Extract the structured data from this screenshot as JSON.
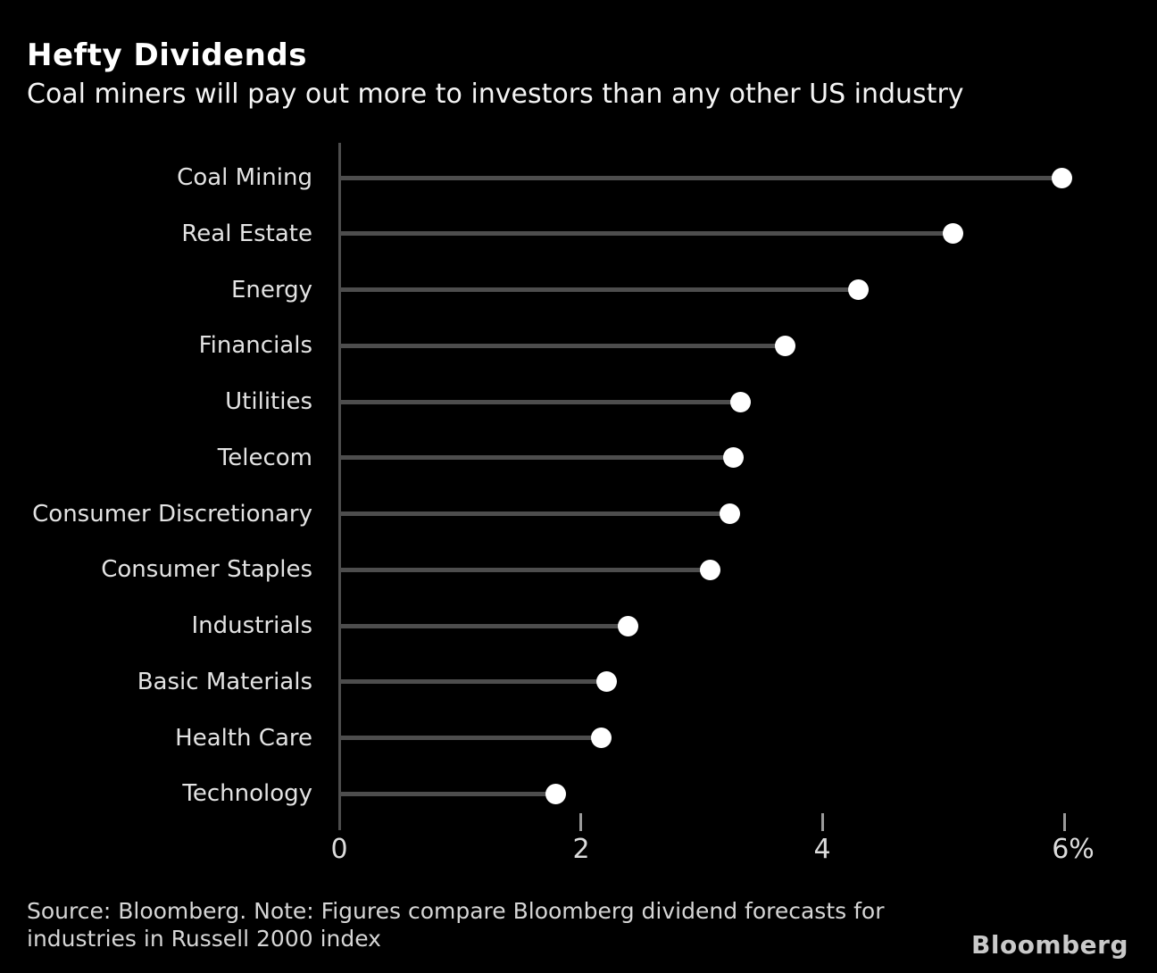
{
  "chart_data": {
    "type": "bar",
    "variant": "lollipop-horizontal",
    "title": "Hefty Dividends",
    "subtitle": "Coal miners will pay out more to investors than any other US industry",
    "categories": [
      "Coal Mining",
      "Real Estate",
      "Energy",
      "Financials",
      "Utilities",
      "Telecom",
      "Consumer Discretionary",
      "Consumer Staples",
      "Industrials",
      "Basic Materials",
      "Health Care",
      "Technology"
    ],
    "values": [
      5.98,
      5.08,
      4.3,
      3.69,
      3.32,
      3.26,
      3.23,
      3.07,
      2.39,
      2.21,
      2.17,
      1.79
    ],
    "unit": "%",
    "xlabel": "",
    "ylabel": "",
    "xlim": [
      0,
      6
    ],
    "xticks": [
      {
        "value": 0,
        "label": "0"
      },
      {
        "value": 2,
        "label": "2"
      },
      {
        "value": 4,
        "label": "4"
      },
      {
        "value": 6,
        "label": "6%"
      }
    ],
    "grid": false,
    "legend": false,
    "source_lines": [
      "Source: Bloomberg. Note: Figures compare Bloomberg dividend forecasts for",
      "industries in Russell 2000 index"
    ],
    "colors": {
      "background": "#000000",
      "dot": "#ffffff",
      "stem": "#4d4d4d",
      "axis_line": "#4d4d4d",
      "tick_mark": "#9a9a9a",
      "category_label": "#e3e3e3",
      "tick_label": "#dcdcdc",
      "title": "#ffffff",
      "source": "#d6d6d6",
      "logo": "#c9c9c9"
    }
  },
  "branding": {
    "logo_text": "Bloomberg"
  }
}
